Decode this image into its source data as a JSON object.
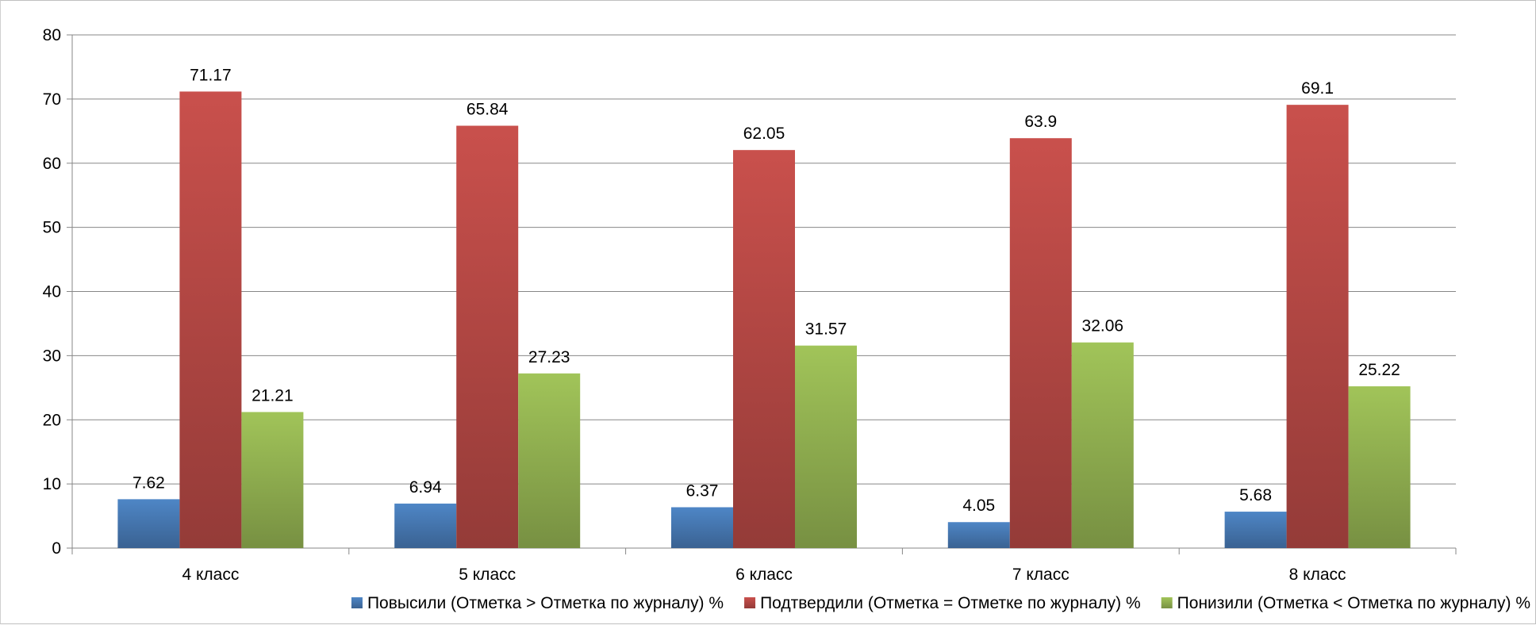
{
  "chart_data": {
    "type": "bar",
    "categories": [
      "4 класс",
      "5 класс",
      "6 класс",
      "7 класс",
      "8 класс"
    ],
    "series": [
      {
        "name": "Повысили (Отметка > Отметка по журналу) %",
        "color": "#4a7ebb",
        "values": [
          7.62,
          6.94,
          6.37,
          4.05,
          5.68
        ]
      },
      {
        "name": "Подтвердили (Отметка = Отметке по журналу) %",
        "color": "#be4b48",
        "values": [
          71.17,
          65.84,
          62.05,
          63.9,
          69.1
        ]
      },
      {
        "name": "Понизили (Отметка < Отметка по журналу) %",
        "color": "#98b954",
        "values": [
          21.21,
          27.23,
          31.57,
          32.06,
          25.22
        ]
      }
    ],
    "y_ticks": [
      "0",
      "10",
      "20",
      "30",
      "40",
      "50",
      "60",
      "70",
      "80"
    ],
    "ylim": [
      0,
      80
    ],
    "title": "",
    "xlabel": "",
    "ylabel": "",
    "grid": true,
    "legend_position": "bottom"
  }
}
